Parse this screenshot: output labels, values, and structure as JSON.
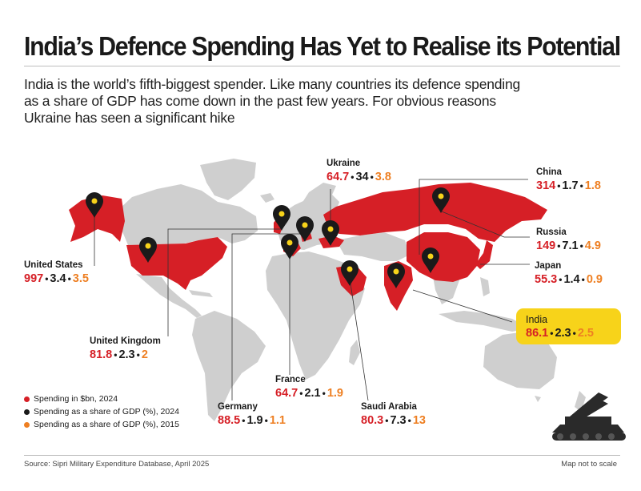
{
  "title": "India’s Defence Spending Has Yet to Realise its Potential",
  "subtitle": [
    "India is the world’s fifth-biggest spender. Like many countries its defence spending",
    "as a share of GDP has come down in the past few years. For obvious reasons",
    "Ukraine has seen a significant hike"
  ],
  "countries": [
    {
      "name": "Ukraine",
      "spend": "64.7",
      "gdp2024": "34",
      "gdp2015": "3.8"
    },
    {
      "name": "China",
      "spend": "314",
      "gdp2024": "1.7",
      "gdp2015": "1.8"
    },
    {
      "name": "Russia",
      "spend": "149",
      "gdp2024": "7.1",
      "gdp2015": "4.9"
    },
    {
      "name": "United States",
      "spend": "997",
      "gdp2024": "3.4",
      "gdp2015": "3.5"
    },
    {
      "name": "Japan",
      "spend": "55.3",
      "gdp2024": "1.4",
      "gdp2015": "0.9"
    },
    {
      "name": "India",
      "spend": "86.1",
      "gdp2024": "2.3",
      "gdp2015": "2.5"
    },
    {
      "name": "United Kingdom",
      "spend": "81.8",
      "gdp2024": "2.3",
      "gdp2015": "2"
    },
    {
      "name": "France",
      "spend": "64.7",
      "gdp2024": "2.1",
      "gdp2015": "1.9"
    },
    {
      "name": "Germany",
      "spend": "88.5",
      "gdp2024": "1.9",
      "gdp2015": "1.1"
    },
    {
      "name": "Saudi Arabia",
      "spend": "80.3",
      "gdp2024": "7.3",
      "gdp2015": "13"
    }
  ],
  "separator": "•",
  "legend": [
    {
      "label": "Spending in $bn, 2024",
      "color": "#d61f26"
    },
    {
      "label": "Spending as a share of GDP (%), 2024",
      "color": "#1a1a1a"
    },
    {
      "label": "Spending as a share of GDP (%), 2015",
      "color": "#ee7f22"
    }
  ],
  "source": "Source: Sipri Military Expenditure Database, April 2025",
  "note": "Map not to scale",
  "colors": {
    "highlight_country": "#d61f26",
    "land": "#cfcfcf",
    "india_box": "#f7d31a",
    "pin": "#1a1a1a",
    "pin_dot": "#f7d31a"
  }
}
